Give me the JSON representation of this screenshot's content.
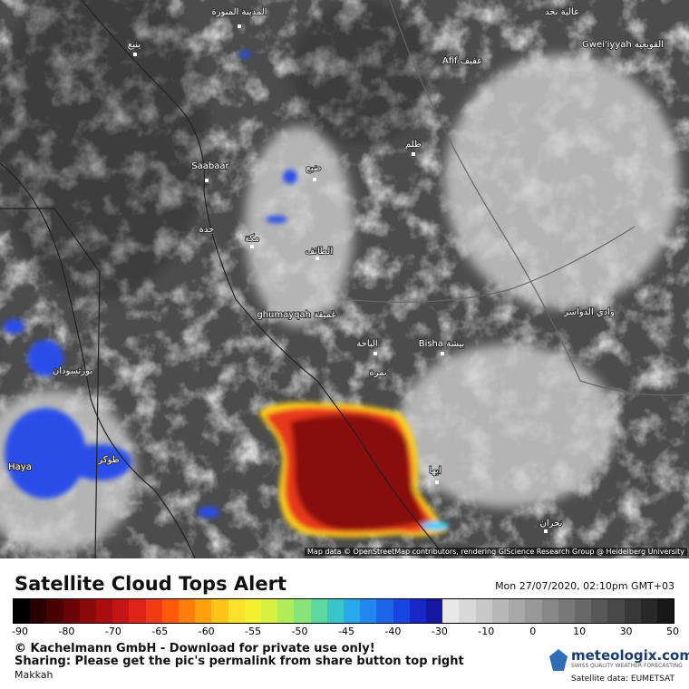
{
  "header": {
    "title": "Satellite Cloud Tops Alert",
    "timestamp": "Mon 27/07/2020, 02:10pm GMT+03"
  },
  "map": {
    "attribution": "Map data © OpenStreetMap contributors, rendering GIScience Research Group @ Heidelberg University",
    "places": [
      "المدينة المنورة",
      "ينبع",
      "عالية نجد",
      "Gwei'iyyah القويعية",
      "Afif عفيف",
      "ظلم",
      "Saabaar",
      "ضبع",
      "جدة",
      "مكة",
      "الطائف",
      "ghumayqah غميقة",
      "الباحة",
      "Bisha بيشة",
      "نمرة",
      "وادي الدواسر",
      "بورتسودان",
      "طوكر",
      "Haya",
      "ابها",
      "نجران"
    ]
  },
  "legend": {
    "ticks": [
      -90,
      -80,
      -70,
      -65,
      -60,
      -55,
      -50,
      -45,
      -40,
      -30,
      -10,
      0,
      10,
      30,
      50
    ]
  },
  "footer": {
    "copyright": "© Kachelmann GmbH - Download for private use only!",
    "sharing": "Sharing: Please get the pic's permalink from share button top right",
    "region": "Makkah",
    "brand": "meteologix.com",
    "tagline": "SWISS QUALITY WEATHER FORECASTING",
    "source": "Satellite data: EUMETSAT"
  }
}
